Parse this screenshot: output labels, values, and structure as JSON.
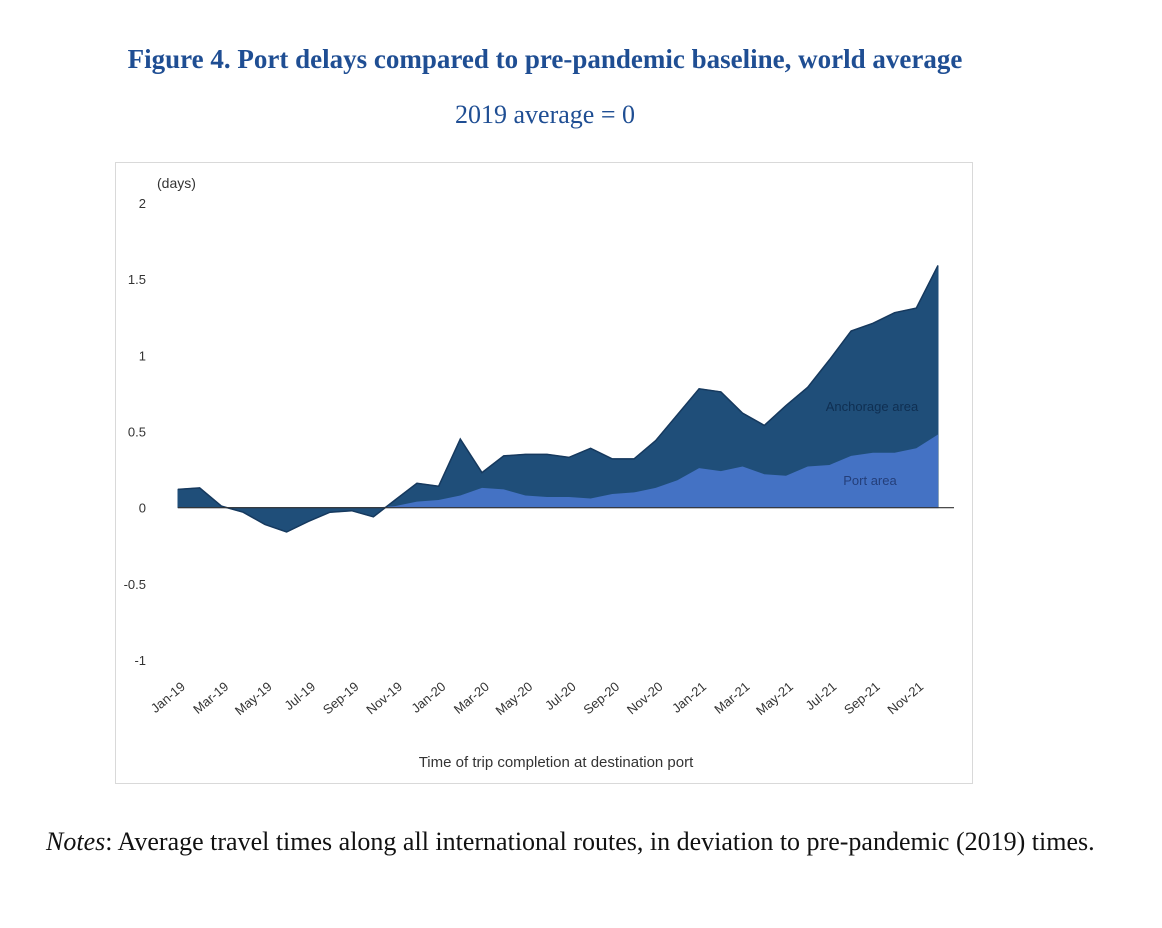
{
  "figure": {
    "title": "Figure 4. Port delays compared to pre-pandemic baseline, world average",
    "subtitle": "2019 average = 0",
    "notes_label": "Notes",
    "notes_text": ":  Average travel times along all international routes, in deviation to pre-pandemic (2019) times."
  },
  "chart_data": {
    "type": "area",
    "title": "",
    "ylabel": "(days)",
    "xlabel": "Time of trip completion at destination port",
    "ylim": [
      -1,
      2
    ],
    "yticks": [
      2,
      1.5,
      1,
      0.5,
      0,
      -0.5,
      -1
    ],
    "ytick_labels": [
      "2",
      "1.5",
      "1",
      "0.5",
      "0",
      "-0.5",
      "-1"
    ],
    "categories": [
      "Jan-19",
      "Feb-19",
      "Mar-19",
      "Apr-19",
      "May-19",
      "Jun-19",
      "Jul-19",
      "Aug-19",
      "Sep-19",
      "Oct-19",
      "Nov-19",
      "Dec-19",
      "Jan-20",
      "Feb-20",
      "Mar-20",
      "Apr-20",
      "May-20",
      "Jun-20",
      "Jul-20",
      "Aug-20",
      "Sep-20",
      "Oct-20",
      "Nov-20",
      "Dec-20",
      "Jan-21",
      "Feb-21",
      "Mar-21",
      "Apr-21",
      "May-21",
      "Jun-21",
      "Jul-21",
      "Aug-21",
      "Sep-21",
      "Oct-21",
      "Nov-21",
      "Dec-21"
    ],
    "xtick_labels": [
      "Jan-19",
      "Mar-19",
      "May-19",
      "Jul-19",
      "Sep-19",
      "Nov-19",
      "Jan-20",
      "Mar-20",
      "May-20",
      "Jul-20",
      "Sep-20",
      "Nov-20",
      "Jan-21",
      "Mar-21",
      "May-21",
      "Jul-21",
      "Sep-21",
      "Nov-21"
    ],
    "series": [
      {
        "name": "Anchorage area",
        "color": "#1f4e79",
        "label_color": "#0f2f52",
        "total_values": [
          0.12,
          0.13,
          0.01,
          -0.03,
          -0.11,
          -0.16,
          -0.09,
          -0.03,
          -0.02,
          -0.06,
          0.05,
          0.16,
          0.14,
          0.45,
          0.23,
          0.34,
          0.35,
          0.35,
          0.33,
          0.39,
          0.32,
          0.32,
          0.44,
          0.61,
          0.78,
          0.76,
          0.62,
          0.54,
          0.67,
          0.79,
          0.97,
          1.16,
          1.21,
          1.28,
          1.31,
          1.59
        ]
      },
      {
        "name": "Port area",
        "color": "#4472c4",
        "label_color": "#243f7a",
        "values": [
          0,
          0,
          0,
          0,
          0,
          0,
          0,
          0,
          0,
          0,
          0.01,
          0.04,
          0.05,
          0.08,
          0.13,
          0.12,
          0.08,
          0.07,
          0.07,
          0.06,
          0.09,
          0.1,
          0.13,
          0.18,
          0.26,
          0.24,
          0.27,
          0.22,
          0.21,
          0.27,
          0.28,
          0.34,
          0.36,
          0.36,
          0.39,
          0.48
        ]
      }
    ],
    "zero_line_color": "#333333",
    "grid": false,
    "legend": "in-plot labels"
  }
}
